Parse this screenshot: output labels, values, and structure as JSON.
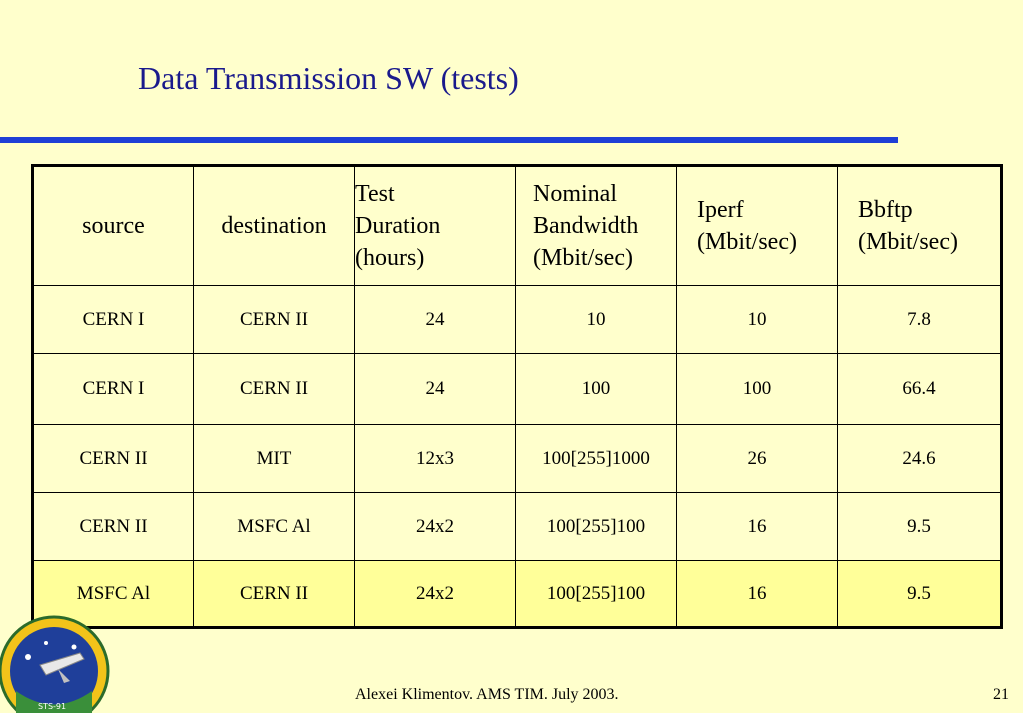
{
  "slide": {
    "title": "Data Transmission SW (tests)",
    "footer": "Alexei Klimentov. AMS TIM. July 2003.",
    "page_number": "21",
    "logo_text": "STS-91"
  },
  "colors": {
    "background": "#ffffcc",
    "title": "#1a1a8c",
    "rule": "#1f3fd6",
    "highlight_row": "#ffff99"
  },
  "table": {
    "headers": {
      "source": "source",
      "destination": "destination",
      "duration": [
        "Test",
        "Duration",
        "(hours)"
      ],
      "nominal": [
        "Nominal",
        "Bandwidth",
        "(Mbit/sec)"
      ],
      "iperf": [
        "Iperf",
        "(Mbit/sec)"
      ],
      "bbftp": [
        "Bbftp",
        "(Mbit/sec)"
      ]
    },
    "rows": [
      [
        "CERN I",
        "CERN II",
        "24",
        "10",
        "10",
        "7.8"
      ],
      [
        "CERN I",
        "CERN II",
        "24",
        "100",
        "100",
        "66.4"
      ],
      [
        "CERN II",
        "MIT",
        "12x3",
        "100[255]1000",
        "26",
        "24.6"
      ],
      [
        "CERN II",
        "MSFC Al",
        "24x2",
        "100[255]100",
        "16",
        "9.5"
      ],
      [
        "MSFC Al",
        "CERN II",
        "24x2",
        "100[255]100",
        "16",
        "9.5"
      ]
    ]
  }
}
